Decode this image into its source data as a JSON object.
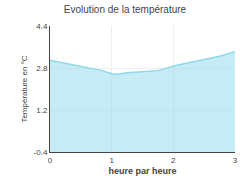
{
  "chart_data": {
    "type": "area",
    "title": "Evolution de la température",
    "x_label": "heure par heure",
    "y_label": "Température en °C",
    "x": [
      0,
      0.3,
      0.6,
      0.85,
      1.0,
      1.1,
      1.25,
      1.5,
      1.75,
      2.0,
      2.25,
      2.5,
      2.75,
      3.0
    ],
    "values": [
      3.1,
      2.95,
      2.82,
      2.7,
      2.58,
      2.56,
      2.62,
      2.67,
      2.7,
      2.88,
      3.0,
      3.12,
      3.25,
      3.42
    ],
    "color": "#8dd8ea",
    "xlim": [
      0,
      3
    ],
    "xticks": [
      0,
      1,
      2,
      3
    ],
    "ylim": [
      -0.4,
      4.4
    ],
    "yticks": [
      -0.4,
      1.2,
      2.8,
      4.4
    ],
    "grid": true
  }
}
